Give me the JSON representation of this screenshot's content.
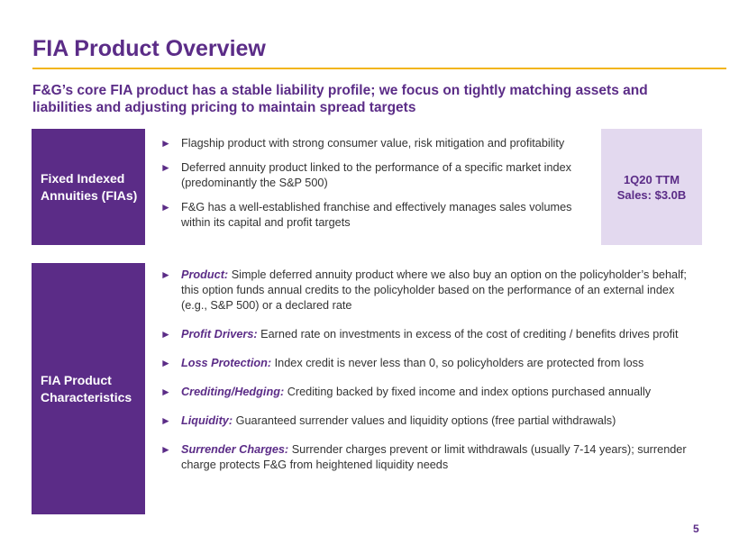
{
  "title": "FIA Product Overview",
  "subtitle": "F&G’s core FIA product has a stable liability profile; we focus on tightly matching assets and liabilities and adjusting pricing to maintain spread targets",
  "section1": {
    "label_line1": "Fixed Indexed",
    "label_line2": "Annuities (FIAs)",
    "bullets": [
      "Flagship product with strong consumer value, risk mitigation and profitability",
      "Deferred annuity product linked to the performance of a specific market index (predominantly the S&P 500)",
      "F&G has a well-established franchise and effectively manages sales volumes within its capital and profit targets"
    ],
    "sales_line1": "1Q20 TTM",
    "sales_line2": "Sales: $3.0B"
  },
  "section2": {
    "label_line1": "FIA Product",
    "label_line2": "Characteristics",
    "bullets": [
      {
        "term": "Product:",
        "text": "Simple deferred annuity product where we also buy an option on the policyholder’s behalf; this option funds annual credits to the policyholder based on the performance of an external index (e.g., S&P 500) or a declared rate"
      },
      {
        "term": "Profit Drivers:",
        "text": "Earned rate on investments in excess of the cost of crediting / benefits drives profit"
      },
      {
        "term": "Loss Protection:",
        "text": "Index credit is never less than 0, so policyholders are protected from loss"
      },
      {
        "term": "Crediting/Hedging:",
        "text": "Crediting backed by fixed income and index options purchased annually"
      },
      {
        "term": "Liquidity:",
        "text": "Guaranteed surrender values and liquidity options (free partial withdrawals)"
      },
      {
        "term": "Surrender Charges:",
        "text": "Surrender charges prevent or limit withdrawals (usually 7-14 years); surrender charge protects F&G from heightened liquidity needs"
      }
    ]
  },
  "page_number": "5",
  "bullet_glyph": "►",
  "colors": {
    "accent": "#5b2c87",
    "rule": "#f2b51a",
    "highlight_box": "#e3d9ef"
  }
}
